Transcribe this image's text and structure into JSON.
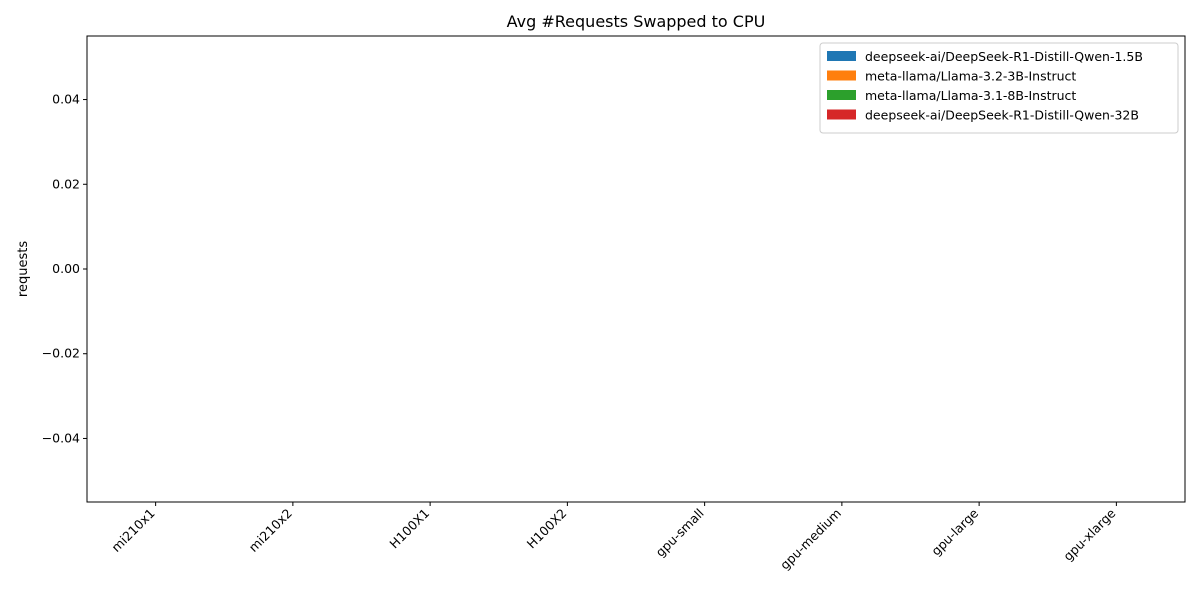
{
  "chart_data": {
    "type": "bar",
    "title": "Avg #Requests Swapped to CPU",
    "xlabel": "",
    "ylabel": "requests",
    "categories": [
      "mi210x1",
      "mi210x2",
      "H100X1",
      "H100X2",
      "gpu-small",
      "gpu-medium",
      "gpu-large",
      "gpu-xlarge"
    ],
    "series": [
      {
        "name": "deepseek-ai/DeepSeek-R1-Distill-Qwen-1.5B",
        "color": "#1f77b4",
        "values": [
          0,
          0,
          0,
          0,
          0,
          0,
          0,
          0
        ]
      },
      {
        "name": "meta-llama/Llama-3.2-3B-Instruct",
        "color": "#ff7f0e",
        "values": [
          0,
          0,
          0,
          0,
          0,
          0,
          0,
          0
        ]
      },
      {
        "name": "meta-llama/Llama-3.1-8B-Instruct",
        "color": "#2ca02c",
        "values": [
          0,
          0,
          0,
          0,
          0,
          0,
          0,
          0
        ]
      },
      {
        "name": "deepseek-ai/DeepSeek-R1-Distill-Qwen-32B",
        "color": "#d62728",
        "values": [
          0,
          0,
          0,
          0,
          0,
          0,
          0,
          0
        ]
      }
    ],
    "ylim": [
      -0.055,
      0.055
    ],
    "yticks": [
      -0.04,
      -0.02,
      0.0,
      0.02,
      0.04
    ],
    "ytick_labels": [
      "−0.04",
      "−0.02",
      "0.00",
      "0.02",
      "0.04"
    ],
    "grid": false,
    "legend_position": "top-right"
  }
}
